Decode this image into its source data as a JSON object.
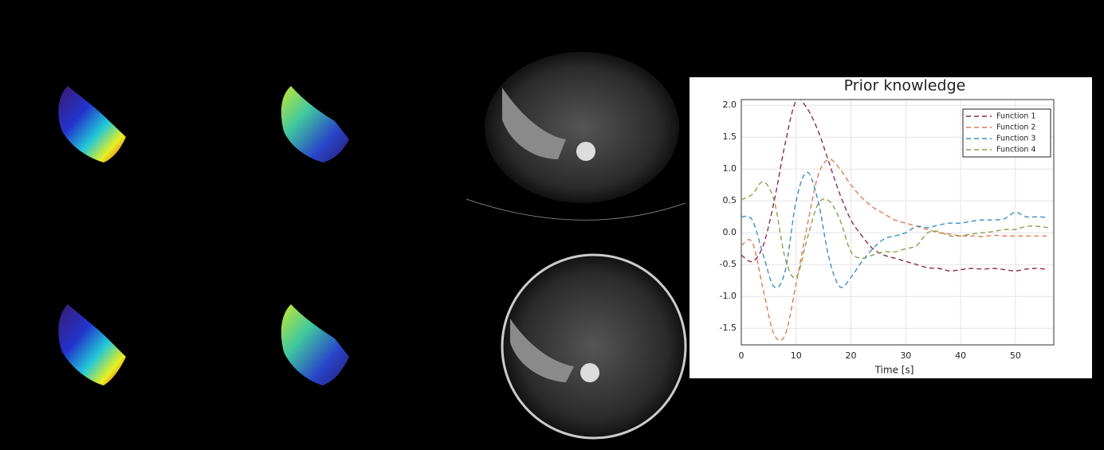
{
  "chart_data": {
    "type": "line",
    "title": "Prior knowledge",
    "x_label": "Time [s]",
    "x": [
      0,
      2,
      4,
      6,
      8,
      10,
      12,
      14,
      16,
      18,
      20,
      22,
      24,
      26,
      28,
      30,
      32,
      34,
      36,
      38,
      40,
      42,
      44,
      46,
      48,
      50,
      52,
      54,
      56
    ],
    "series": [
      {
        "name": "Function 1",
        "color": "#8b2d47",
        "values": [
          -0.35,
          -0.45,
          -0.2,
          0.5,
          1.4,
          2.07,
          1.95,
          1.6,
          1.1,
          0.6,
          0.2,
          -0.05,
          -0.25,
          -0.35,
          -0.4,
          -0.45,
          -0.5,
          -0.55,
          -0.56,
          -0.6,
          -0.58,
          -0.56,
          -0.57,
          -0.56,
          -0.58,
          -0.6,
          -0.57,
          -0.56,
          -0.58
        ]
      },
      {
        "name": "Function 2",
        "color": "#e07b54",
        "values": [
          -0.2,
          -0.15,
          -0.9,
          -1.6,
          -1.6,
          -0.8,
          0.1,
          0.9,
          1.15,
          1.0,
          0.75,
          0.55,
          0.4,
          0.3,
          0.2,
          0.15,
          0.1,
          0.05,
          0.0,
          -0.02,
          -0.05,
          -0.05,
          -0.06,
          -0.04,
          -0.05,
          -0.05,
          -0.05,
          -0.05,
          -0.05
        ]
      },
      {
        "name": "Function 3",
        "color": "#3a8fc7",
        "values": [
          0.25,
          0.2,
          -0.35,
          -0.85,
          -0.6,
          0.5,
          0.95,
          0.5,
          -0.4,
          -0.85,
          -0.7,
          -0.45,
          -0.25,
          -0.1,
          -0.05,
          0.0,
          0.1,
          0.08,
          0.12,
          0.15,
          0.15,
          0.18,
          0.2,
          0.2,
          0.22,
          0.32,
          0.25,
          0.25,
          0.24
        ]
      },
      {
        "name": "Function 4",
        "color": "#8aa150",
        "values": [
          0.52,
          0.6,
          0.8,
          0.5,
          -0.4,
          -0.7,
          -0.1,
          0.45,
          0.5,
          0.2,
          -0.3,
          -0.4,
          -0.35,
          -0.3,
          -0.3,
          -0.25,
          -0.2,
          0.0,
          0.02,
          -0.05,
          -0.05,
          -0.02,
          0.0,
          0.02,
          0.05,
          0.05,
          0.1,
          0.1,
          0.08
        ]
      }
    ],
    "xlim": [
      0,
      57
    ],
    "xticks": [
      0,
      10,
      20,
      30,
      40,
      50
    ],
    "ylim": [
      -1.76,
      2.09
    ],
    "yticks": [
      {
        "value": -1.5,
        "label": "-1.5"
      },
      {
        "value": -1,
        "label": "-1.0"
      },
      -0.5,
      {
        "value": 0,
        "label": "0.0"
      },
      0.5,
      {
        "value": 1,
        "label": "1.0"
      },
      1.5,
      {
        "value": 2,
        "label": "2.0"
      }
    ],
    "grid": true,
    "legend": "upper right",
    "line_style": "dashed"
  }
}
